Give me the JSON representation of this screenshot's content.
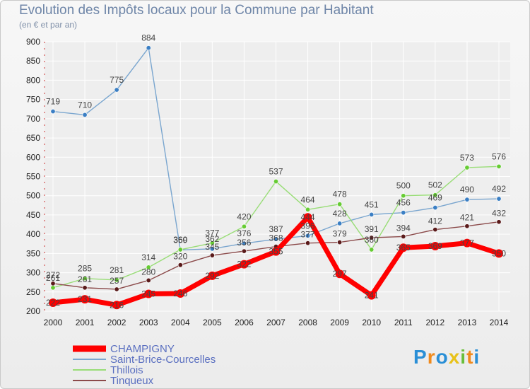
{
  "page": {
    "title": "Evolution des Impôts locaux pour la Commune par Habitant",
    "subtitle": "(en € et par an)",
    "logo": "Proxiti"
  },
  "colors": {
    "background": "#eeeeee",
    "grid": "#ffffff",
    "champigny": "#ff0000",
    "saint_brice": "#7aa6cf",
    "thillois": "#99dd77",
    "tinqueux": "#8b4a4a",
    "champigny_marker": "#ff0000",
    "saint_brice_marker": "#3b7fc4",
    "thillois_marker": "#66cc33",
    "tinqueux_marker": "#5a1a1a"
  },
  "chart_data": {
    "type": "line",
    "title": "Evolution des Impôts locaux pour la Commune par Habitant",
    "subtitle": "(en € et par an)",
    "xlabel": "",
    "ylabel": "",
    "x": [
      2000,
      2001,
      2002,
      2003,
      2004,
      2005,
      2006,
      2007,
      2008,
      2009,
      2010,
      2011,
      2012,
      2013,
      2014
    ],
    "ylim": [
      200,
      900
    ],
    "yticks": [
      200,
      250,
      300,
      350,
      400,
      450,
      500,
      550,
      600,
      650,
      700,
      750,
      800,
      850,
      900
    ],
    "grid": true,
    "legend_position": "bottom-left",
    "series": [
      {
        "name": "CHAMPIGNY",
        "key": "champigny",
        "values": [
          222,
          231,
          216,
          245,
          246,
          292,
          322,
          355,
          444,
          297,
          241,
          365,
          369,
          377,
          350
        ],
        "labels": [
          "222",
          "231",
          "216",
          "245",
          "246",
          "292",
          "322",
          "355",
          "444",
          "297",
          "241",
          "365",
          "369",
          "377",
          "350"
        ]
      },
      {
        "name": "Saint-Brice-Courcelles",
        "key": "saint_brice",
        "values": [
          719,
          710,
          775,
          884,
          359,
          362,
          376,
          387,
          396,
          428,
          451,
          456,
          469,
          490,
          492
        ],
        "labels": [
          "719",
          "710",
          "775",
          "884",
          "359",
          "362",
          "376",
          "387",
          "396",
          "428",
          "451",
          "456",
          "469",
          "490",
          "492"
        ]
      },
      {
        "name": "Thillois",
        "key": "thillois",
        "values": [
          261,
          285,
          281,
          314,
          360,
          377,
          420,
          537,
          464,
          478,
          360,
          500,
          502,
          573,
          576
        ],
        "labels": [
          "261",
          "285",
          "281",
          "314",
          "360",
          "377",
          "420",
          "537",
          "464",
          "478",
          "360",
          "500",
          "502",
          "573",
          "576"
        ]
      },
      {
        "name": "Tinqueux",
        "key": "tinqueux",
        "values": [
          272,
          261,
          257,
          280,
          320,
          345,
          356,
          368,
          377,
          379,
          391,
          394,
          412,
          421,
          432
        ],
        "labels": [
          "272",
          "261",
          "257",
          "280",
          "320",
          "345",
          "356",
          "368",
          "377",
          "379",
          "391",
          "394",
          "412",
          "421",
          "432"
        ]
      }
    ]
  }
}
